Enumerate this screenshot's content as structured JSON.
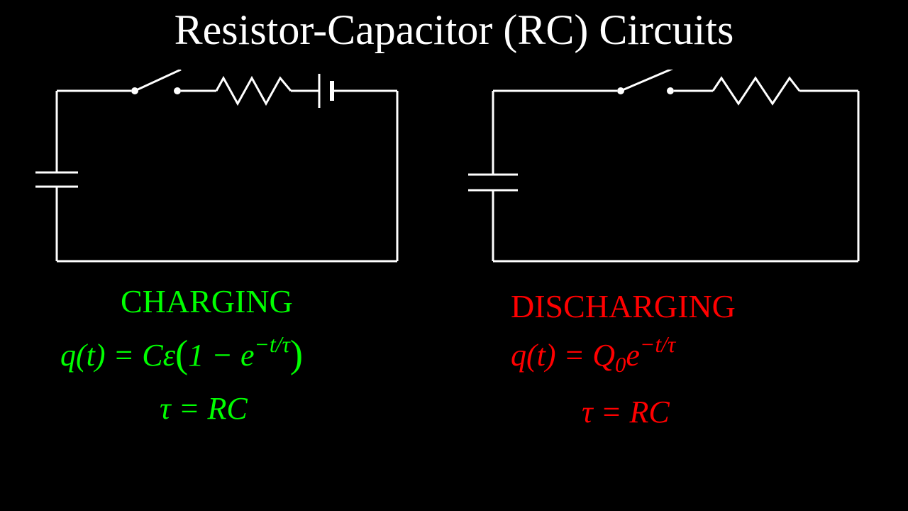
{
  "title": "Resistor-Capacitor (RC) Circuits",
  "colors": {
    "background": "#000000",
    "title": "#ffffff",
    "wire": "#ffffff",
    "charging": "#00ff00",
    "discharging": "#ff0000"
  },
  "charging": {
    "label": "CHARGING",
    "eq1_html": "<span>q</span>(<span>t</span>) = <span>Cε</span><span class='paren'>(</span>1 − <span>e</span><span class='sup'>−t/τ</span><span class='paren'>)</span>",
    "eq2_text": "τ = RC",
    "label_fontsize": 46,
    "eq_fontsize": 44,
    "circuit": {
      "type": "rc-charging",
      "components": [
        "switch-open",
        "resistor",
        "battery",
        "capacitor"
      ],
      "stroke_width": 3
    }
  },
  "discharging": {
    "label": "DISCHARGING",
    "eq1_html": "<span>q</span>(<span>t</span>) = <span>Q</span><span class='sub'>0</span><span>e</span><span class='sup'>−t/τ</span>",
    "eq2_text": "τ = RC",
    "label_fontsize": 46,
    "eq_fontsize": 44,
    "circuit": {
      "type": "rc-discharging",
      "components": [
        "switch-open",
        "resistor",
        "capacitor"
      ],
      "stroke_width": 3
    }
  }
}
